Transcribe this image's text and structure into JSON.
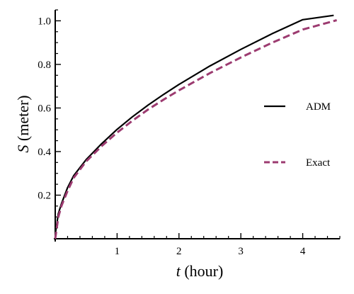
{
  "chart_data": {
    "type": "line",
    "title": "",
    "xlabel": {
      "var": "t",
      "unit": " (hour)"
    },
    "ylabel": {
      "var": "S",
      "unit": " (meter)"
    },
    "xlim": [
      0,
      4.6
    ],
    "ylim": [
      0,
      1.05
    ],
    "x_ticks": [
      1,
      2,
      3,
      4
    ],
    "x_tick_labels": [
      "1",
      "2",
      "3",
      "4"
    ],
    "x_minor_step": 0.2,
    "y_ticks": [
      0.2,
      0.4,
      0.6,
      0.8,
      1.0
    ],
    "y_tick_labels": [
      "0.2",
      "0.4",
      "0.6",
      "0.8",
      "1.0"
    ],
    "y_minor_step": 0.05,
    "grid": false,
    "legend_position": "right",
    "series": [
      {
        "name": "ADM",
        "style": "solid",
        "color": "#000000",
        "x": [
          0,
          0.05,
          0.1,
          0.2,
          0.3,
          0.5,
          0.75,
          1.0,
          1.25,
          1.5,
          1.75,
          2.0,
          2.5,
          3.0,
          3.5,
          4.0,
          4.5
        ],
        "y": [
          0.02,
          0.115,
          0.16,
          0.235,
          0.29,
          0.363,
          0.436,
          0.502,
          0.56,
          0.613,
          0.662,
          0.708,
          0.793,
          0.869,
          0.94,
          1.005,
          1.025
        ]
      },
      {
        "name": "Exact",
        "style": "dashed",
        "color": "#9c3b70",
        "x": [
          0,
          0.05,
          0.1,
          0.2,
          0.3,
          0.5,
          0.75,
          1.0,
          1.25,
          1.5,
          1.75,
          2.0,
          2.5,
          3.0,
          3.5,
          4.0,
          4.55
        ],
        "y": [
          0.0,
          0.1,
          0.15,
          0.22,
          0.28,
          0.355,
          0.425,
          0.487,
          0.542,
          0.593,
          0.638,
          0.681,
          0.76,
          0.832,
          0.899,
          0.96,
          1.003
        ]
      }
    ]
  }
}
